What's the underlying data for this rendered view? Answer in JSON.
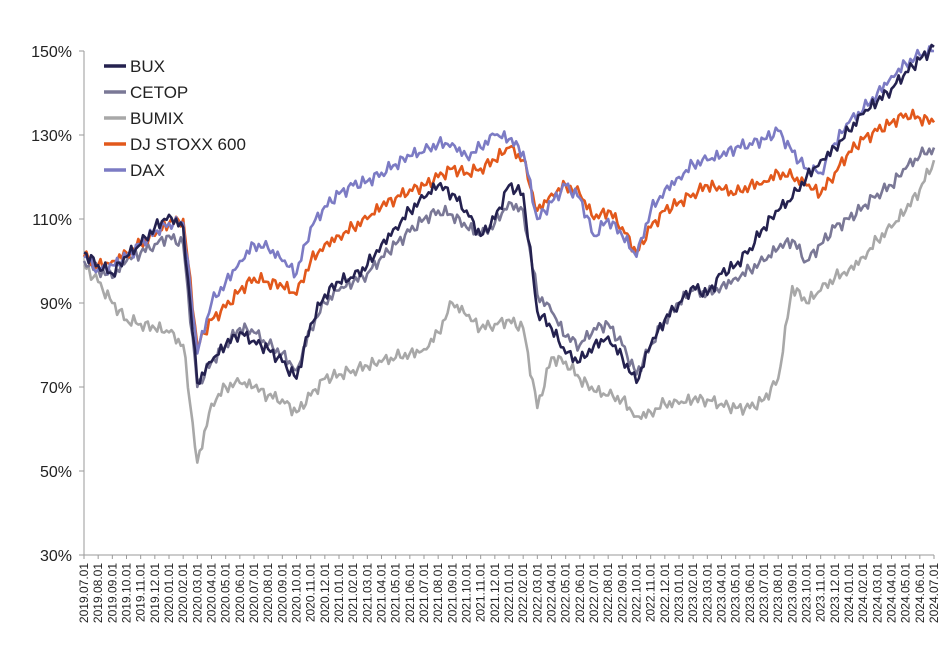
{
  "chart_data": {
    "type": "line",
    "title": "",
    "xlabel": "",
    "ylabel": "",
    "ylim": [
      30,
      150
    ],
    "y_tick_labels": [
      "30%",
      "50%",
      "70%",
      "90%",
      "110%",
      "130%",
      "150%"
    ],
    "y_tick_values": [
      30,
      50,
      70,
      90,
      110,
      130,
      150
    ],
    "x_tick_labels": [
      "2019.07.01",
      "2019.08.01",
      "2019.09.01",
      "2019.10.01",
      "2019.11.01",
      "2019.12.01",
      "2020.01.01",
      "2020.02.01",
      "2020.03.01",
      "2020.04.01",
      "2020.05.01",
      "2020.06.01",
      "2020.07.01",
      "2020.08.01",
      "2020.09.01",
      "2020.10.01",
      "2020.11.01",
      "2020.12.01",
      "2021.01.01",
      "2021.02.01",
      "2021.03.01",
      "2021.04.01",
      "2021.05.01",
      "2021.06.01",
      "2021.07.01",
      "2021.08.01",
      "2021.09.01",
      "2021.10.01",
      "2021.11.01",
      "2021.12.01",
      "2022.01.01",
      "2022.02.01",
      "2022.03.01",
      "2022.04.01",
      "2022.05.01",
      "2022.06.01",
      "2022.07.01",
      "2022.08.01",
      "2022.09.01",
      "2022.10.01",
      "2022.11.01",
      "2022.12.01",
      "2023.01.01",
      "2023.02.01",
      "2023.03.01",
      "2023.04.01",
      "2023.05.01",
      "2023.06.01",
      "2023.07.01",
      "2023.08.01",
      "2023.09.01",
      "2023.10.01",
      "2023.11.01",
      "2023.12.01",
      "2024.01.01",
      "2024.02.01",
      "2024.03.01",
      "2024.04.01",
      "2024.05.01",
      "2024.06.01",
      "2024.07.01"
    ],
    "legend_position": "top-left",
    "grid": false,
    "series": [
      {
        "name": "BUX",
        "color": "#24214f",
        "values": [
          102,
          99,
          97,
          101,
          104,
          108,
          111,
          108,
          71,
          76,
          80,
          83,
          81,
          79,
          76,
          72,
          85,
          92,
          95,
          96,
          99,
          104,
          108,
          112,
          115,
          118,
          116,
          112,
          106,
          110,
          118,
          116,
          88,
          84,
          78,
          76,
          80,
          82,
          77,
          71,
          80,
          86,
          90,
          94,
          92,
          97,
          99,
          103,
          108,
          112,
          115,
          120,
          124,
          127,
          131,
          135,
          138,
          141,
          145,
          148,
          151
        ]
      },
      {
        "name": "CETOP",
        "color": "#7a7896",
        "values": [
          100,
          98,
          96,
          100,
          102,
          104,
          106,
          104,
          70,
          76,
          80,
          84,
          83,
          80,
          78,
          74,
          84,
          90,
          93,
          95,
          97,
          101,
          104,
          107,
          110,
          112,
          111,
          108,
          106,
          109,
          114,
          112,
          92,
          88,
          82,
          80,
          84,
          85,
          80,
          73,
          80,
          86,
          90,
          93,
          92,
          94,
          96,
          98,
          100,
          103,
          105,
          100,
          104,
          108,
          110,
          113,
          116,
          118,
          122,
          125,
          127
        ]
      },
      {
        "name": "BUMIX",
        "color": "#a8a8a8",
        "values": [
          99,
          95,
          90,
          86,
          85,
          84,
          83,
          80,
          52,
          66,
          70,
          71,
          70,
          68,
          67,
          64,
          68,
          72,
          73,
          74,
          75,
          76,
          77,
          78,
          79,
          83,
          90,
          87,
          84,
          85,
          86,
          84,
          65,
          77,
          76,
          72,
          69,
          68,
          67,
          63,
          64,
          66,
          66,
          67,
          67,
          66,
          65,
          65,
          67,
          72,
          94,
          90,
          93,
          96,
          98,
          101,
          105,
          108,
          112,
          117,
          124
        ]
      },
      {
        "name": "DJ STOXX 600",
        "color": "#e2581b",
        "values": [
          101,
          99,
          100,
          102,
          104,
          106,
          109,
          110,
          80,
          86,
          89,
          93,
          96,
          95,
          94,
          92,
          100,
          104,
          106,
          108,
          110,
          113,
          115,
          117,
          118,
          120,
          122,
          121,
          122,
          124,
          127,
          124,
          112,
          116,
          118,
          116,
          110,
          112,
          108,
          102,
          108,
          112,
          114,
          116,
          118,
          117,
          116,
          118,
          119,
          121,
          120,
          118,
          116,
          121,
          126,
          129,
          131,
          133,
          135,
          134,
          133
        ]
      },
      {
        "name": "DAX",
        "color": "#7c7bc4",
        "values": [
          101,
          98,
          99,
          101,
          104,
          107,
          109,
          109,
          78,
          90,
          95,
          100,
          104,
          103,
          100,
          97,
          108,
          113,
          116,
          118,
          119,
          121,
          123,
          125,
          126,
          128,
          128,
          125,
          127,
          130,
          129,
          126,
          110,
          114,
          118,
          115,
          106,
          110,
          106,
          101,
          112,
          117,
          120,
          123,
          124,
          125,
          127,
          128,
          129,
          131,
          126,
          122,
          121,
          128,
          133,
          136,
          140,
          144,
          147,
          149,
          150
        ]
      }
    ]
  }
}
